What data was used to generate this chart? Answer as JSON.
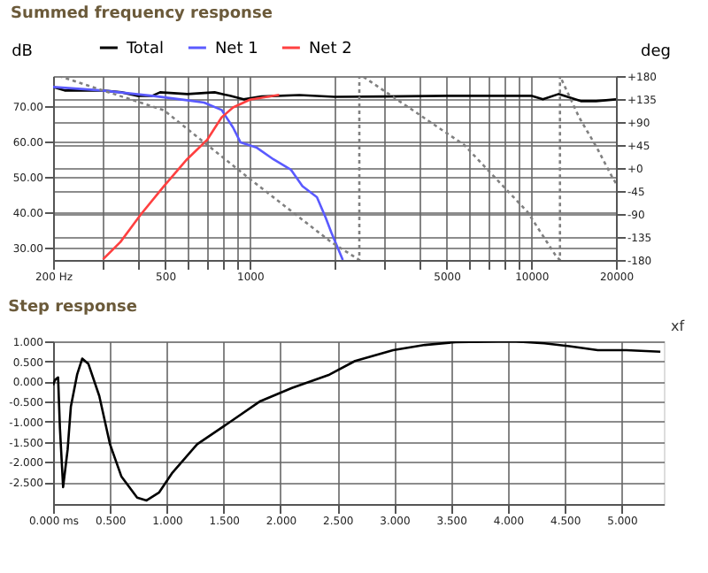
{
  "chart_data": [
    {
      "type": "line",
      "title": "Summed frequency response",
      "ylabel": "dB",
      "y2label": "deg",
      "log": "x",
      "grid": true,
      "legend": "top",
      "xlim": [
        200,
        20000
      ],
      "ylim": [
        26.5,
        78.6
      ],
      "y2lim": [
        -180,
        180
      ],
      "xticks": [
        {
          "value": 200,
          "label": "200 Hz"
        },
        {
          "value": 300,
          "label": null
        },
        {
          "value": 400,
          "label": null
        },
        500,
        {
          "value": 600,
          "label": null
        },
        {
          "value": 700,
          "label": null
        },
        {
          "value": 800,
          "label": null
        },
        {
          "value": 900,
          "label": null
        },
        1000,
        {
          "value": 2000,
          "label": null
        },
        {
          "value": 3000,
          "label": null
        },
        {
          "value": 4000,
          "label": null
        },
        5000,
        {
          "value": 6000,
          "label": null
        },
        {
          "value": 7000,
          "label": null
        },
        {
          "value": 8000,
          "label": null
        },
        {
          "value": 9000,
          "label": null
        },
        10000,
        20000
      ],
      "yticks": [
        {
          "value": 30,
          "label": "30.00"
        },
        {
          "value": 40,
          "label": "40.00"
        },
        {
          "value": 50,
          "label": "50.00"
        },
        {
          "value": 60,
          "label": "60.00"
        },
        {
          "value": 70,
          "label": "70.00"
        }
      ],
      "y2ticks": [
        {
          "value": 180,
          "label": "+180"
        },
        {
          "value": 135,
          "label": "+135"
        },
        {
          "value": 90,
          "label": "+90"
        },
        {
          "value": 45,
          "label": "+45"
        },
        {
          "value": 0,
          "label": "+0"
        },
        {
          "value": -45,
          "label": "-45"
        },
        {
          "value": -90,
          "label": "-90"
        },
        {
          "value": -135,
          "label": "-135"
        },
        {
          "value": -180,
          "label": "-180"
        }
      ],
      "series": [
        {
          "name": "Total",
          "color": "#000000",
          "x": [
            200,
            220,
            300,
            350,
            400,
            450,
            480,
            600,
            750,
            850,
            950,
            1100,
            1500,
            2000,
            3000,
            5000,
            8000,
            10000,
            11000,
            12500,
            15000,
            17000,
            20000
          ],
          "values": [
            75.5,
            74.5,
            74.5,
            74,
            73,
            73,
            74,
            73.5,
            74,
            73,
            72,
            72.8,
            73.2,
            72.7,
            72.8,
            73,
            73,
            73,
            72,
            73.5,
            71.5,
            71.5,
            72
          ]
        },
        {
          "name": "Net 1",
          "color": "#5a5aff",
          "x": [
            200,
            300,
            450,
            591,
            688,
            794,
            872,
            927,
            1054,
            1214,
            1399,
            1538,
            1732,
            1858,
            1946,
            2140
          ],
          "values": [
            75.5,
            74.5,
            73,
            71.8,
            71.1,
            69,
            64,
            59.8,
            58.4,
            55,
            52.1,
            47.4,
            44.3,
            38.6,
            34.4,
            26.5
          ]
        },
        {
          "name": "Net 2",
          "color": "#ff4040",
          "x": [
            301,
            347,
            410,
            495,
            598,
            705,
            794,
            872,
            1000,
            1272
          ],
          "values": [
            26.7,
            31.6,
            39.4,
            47.4,
            55,
            60.5,
            66.9,
            69.7,
            71.9,
            73.3
          ]
        },
        {
          "color": "#808080",
          "axis": "y2",
          "line_style": "dotted",
          "x": [
            210,
            495,
            982,
            1946,
            2450,
            2450,
            2510,
            5780,
            9700,
            12300,
            12650,
            12650,
            14800,
            17100,
            19400,
            20000
          ],
          "values": [
            180,
            113,
            -18,
            -145,
            -180,
            180,
            180,
            45,
            -86,
            -174,
            -180,
            180,
            99,
            40,
            -18,
            -30
          ]
        }
      ]
    },
    {
      "type": "line",
      "title": "Step response",
      "grid": true,
      "annotations": [
        "xf"
      ],
      "xlim": [
        0,
        5.37
      ],
      "ylim": [
        -3.05,
        1.0
      ],
      "xticks": [
        {
          "value": 0,
          "label": "0.000 ms"
        },
        {
          "value": 0.5,
          "label": "0.500"
        },
        {
          "value": 1,
          "label": "1.000"
        },
        {
          "value": 1.5,
          "label": "1.500"
        },
        {
          "value": 2,
          "label": "2.000"
        },
        {
          "value": 2.5,
          "label": "2.500"
        },
        {
          "value": 3,
          "label": "3.000"
        },
        {
          "value": 3.5,
          "label": "3.500"
        },
        {
          "value": 4,
          "label": "4.000"
        },
        {
          "value": 4.5,
          "label": "4.500"
        },
        {
          "value": 5,
          "label": "5.000"
        }
      ],
      "yticks": [
        {
          "value": 1,
          "label": "1.000"
        },
        {
          "value": 0.5,
          "label": "0.500"
        },
        {
          "value": 0,
          "label": "0.000"
        },
        {
          "value": -0.5,
          "label": "-0.500"
        },
        {
          "value": -1,
          "label": "-1.000"
        },
        {
          "value": -1.5,
          "label": "-1.500"
        },
        {
          "value": -2,
          "label": "-2.000"
        },
        {
          "value": -2.5,
          "label": "-2.500"
        }
      ],
      "series": [
        {
          "color": "#000000",
          "x": [
            0,
            0.017,
            0.044,
            0.06,
            0.088,
            0.128,
            0.156,
            0.211,
            0.256,
            0.31,
            0.406,
            0.5,
            0.6,
            0.739,
            0.822,
            0.933,
            1.044,
            1.267,
            1.544,
            1.822,
            2.1,
            2.43,
            2.655,
            2.99,
            3.27,
            3.54,
            4.04,
            4.32,
            4.54,
            4.79,
            5.04,
            5.34
          ],
          "values": [
            -0.09,
            0.04,
            0.1,
            -1.16,
            -2.63,
            -1.69,
            -0.63,
            0.17,
            0.57,
            0.44,
            -0.36,
            -1.56,
            -2.36,
            -2.89,
            -2.96,
            -2.76,
            -2.29,
            -1.56,
            -1.03,
            -0.49,
            -0.16,
            0.17,
            0.51,
            0.78,
            0.91,
            0.98,
            1.0,
            0.95,
            0.88,
            0.78,
            0.78,
            0.74
          ]
        }
      ]
    }
  ]
}
